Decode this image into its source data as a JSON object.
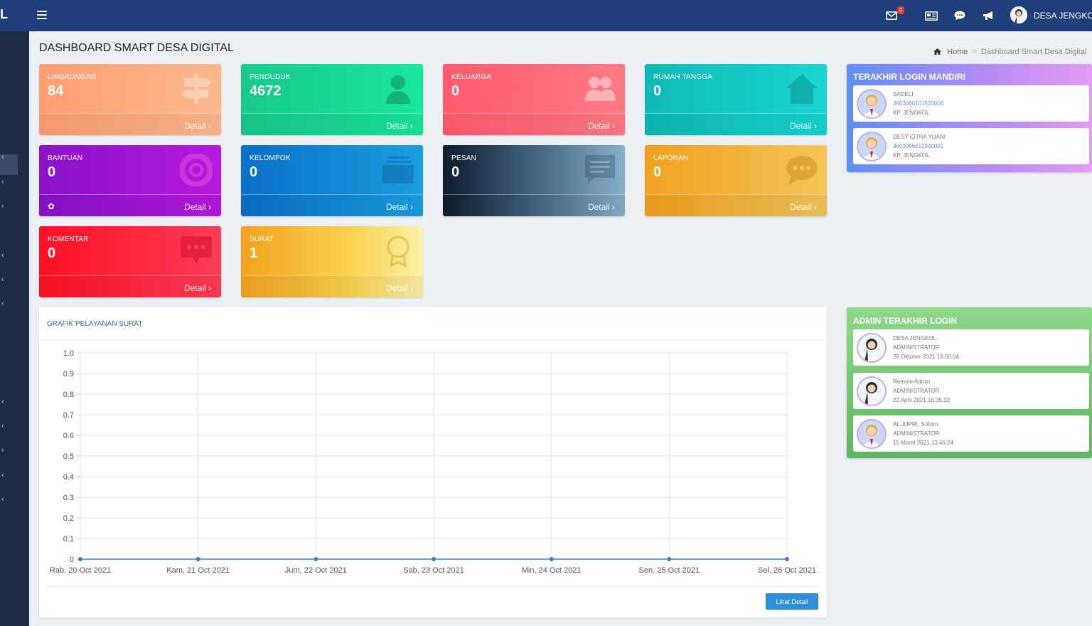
{
  "topbar": {
    "brand": "L",
    "mail_badge": "0",
    "user_name": "DESA JENGKOL"
  },
  "page": {
    "title": "DASHBOARD SMART DESA DIGITAL",
    "breadcrumb_home": "Home",
    "breadcrumb_current": "Dashboard Smart Desa Digital"
  },
  "cards": [
    {
      "label": "LINGKUNGAN",
      "value": "84",
      "detail": "Detail",
      "icon": "signpost-icon"
    },
    {
      "label": "PENDUDUK",
      "value": "4672",
      "detail": "Detail",
      "icon": "user-icon"
    },
    {
      "label": "KELUARGA",
      "value": "0",
      "detail": "Detail",
      "icon": "users-icon"
    },
    {
      "label": "RUMAH TANGGA",
      "value": "0",
      "detail": "Detail",
      "icon": "home-icon"
    },
    {
      "label": "BANTUAN",
      "value": "0",
      "detail": "Detail",
      "icon": "lifebuoy-icon"
    },
    {
      "label": "KELOMPOK",
      "value": "0",
      "detail": "Detail",
      "icon": "inbox-icon"
    },
    {
      "label": "PESAN",
      "value": "0",
      "detail": "Detail",
      "icon": "message-icon"
    },
    {
      "label": "LAPORAN",
      "value": "0",
      "detail": "Detail",
      "icon": "chat-bubble-icon"
    },
    {
      "label": "KOMENTAR",
      "value": "0",
      "detail": "Detail",
      "icon": "comment-icon"
    },
    {
      "label": "SURAT",
      "value": "1",
      "detail": "Detail",
      "icon": "award-icon"
    }
  ],
  "chart": {
    "title": "GRAFIK PELAYANAN SURAT",
    "button": "Lihat Detail"
  },
  "chart_data": {
    "type": "line",
    "title": "GRAFIK PELAYANAN SURAT",
    "categories": [
      "Rab, 20 Oct 2021",
      "Kam, 21 Oct 2021",
      "Jum, 22 Oct 2021",
      "Sab, 23 Oct 2021",
      "Min, 24 Oct 2021",
      "Sen, 25 Oct 2021",
      "Sel, 26 Oct 2021"
    ],
    "values": [
      0,
      0,
      0,
      0,
      0,
      0,
      0
    ],
    "ylim": [
      0,
      1
    ],
    "yticks": [
      "1.0",
      "0.9",
      "0.8",
      "0.7",
      "0.6",
      "0.5",
      "0.4",
      "0.3",
      "0.2",
      "0.1",
      "0"
    ],
    "grid": true,
    "color": "#3b7ddd"
  },
  "login_mandiri": {
    "title": "TERAKHIR LOGIN MANDIRI",
    "items": [
      {
        "name": "SADELI",
        "nik": "3603060101520006",
        "address": "KP. JENGKOL"
      },
      {
        "name": "DESY CITRA YUANI",
        "nik": "3603066612940001",
        "address": "KP. JENGKOL"
      }
    ]
  },
  "admin_login": {
    "title": "ADMIN TERAKHIR LOGIN",
    "items": [
      {
        "name": "DESA JENGKOL",
        "role": "ADMINISTRATOR",
        "time": "26 Oktober 2021 16:00:04"
      },
      {
        "name": "Remote Admin",
        "role": "ADMINISTRATOR",
        "time": "22 April 2021 16:35:32"
      },
      {
        "name": "AL JUPRI, S.Kom",
        "role": "ADMINISTRATOR",
        "time": "15 Maret 2021 13:46:24"
      }
    ]
  }
}
